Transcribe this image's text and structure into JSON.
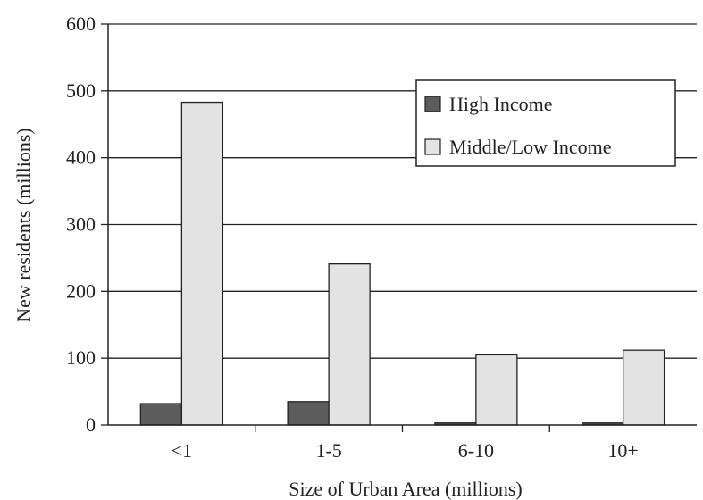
{
  "chart_data": {
    "type": "bar",
    "title": "",
    "xlabel": "Size of Urban Area (millions)",
    "ylabel": "New residents (millions)",
    "categories": [
      "<1",
      "1-5",
      "6-10",
      "10+"
    ],
    "ylim": [
      0,
      600
    ],
    "yticks": [
      0,
      100,
      200,
      300,
      400,
      500,
      600
    ],
    "grid": "horizontal",
    "legend_position": "top-right",
    "series": [
      {
        "name": "High Income",
        "values": [
          32,
          35,
          3,
          3
        ],
        "color": "#5c5c5c"
      },
      {
        "name": "Middle/Low Income",
        "values": [
          483,
          241,
          105,
          112
        ],
        "color": "#e3e3e3"
      }
    ]
  }
}
